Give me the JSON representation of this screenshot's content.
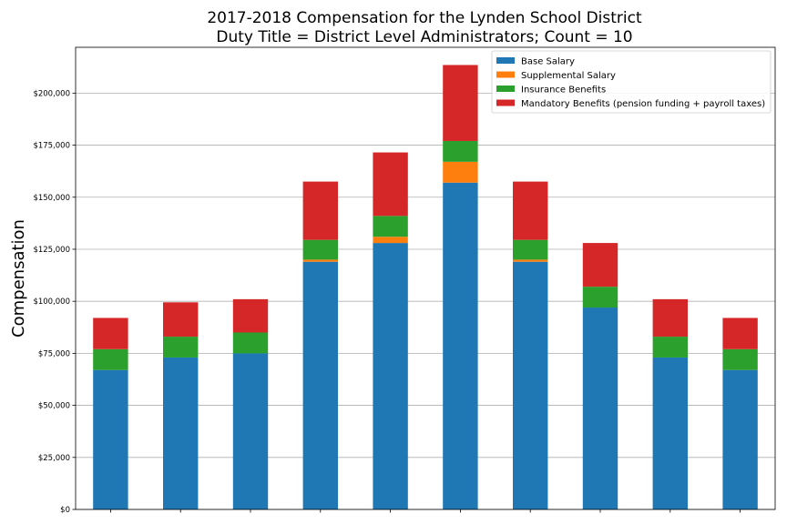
{
  "chart_data": {
    "type": "bar",
    "stacked": true,
    "title_line1": "2017-2018 Compensation for the Lynden School District",
    "title_line2": "Duty Title = District Level Administrators; Count = 10",
    "xlabel": "",
    "ylabel": "Compensation",
    "ylim": [
      0,
      222000
    ],
    "yticks": [
      0,
      25000,
      50000,
      75000,
      100000,
      125000,
      150000,
      175000,
      200000
    ],
    "ytick_labels": [
      "$0",
      "$25,000",
      "$50,000",
      "$75,000",
      "$100,000",
      "$125,000",
      "$150,000",
      "$175,000",
      "$200,000"
    ],
    "grid": "horizontal",
    "legend_position": "top-right",
    "categories": [
      "",
      "",
      "",
      "",
      "",
      "",
      "",
      "",
      "",
      ""
    ],
    "series": [
      {
        "name": "Base Salary",
        "color": "#1f77b4",
        "values": [
          67000,
          73000,
          75000,
          119000,
          128000,
          157000,
          119000,
          97000,
          73000,
          67000
        ]
      },
      {
        "name": "Supplemental Salary",
        "color": "#ff7f0e",
        "values": [
          0,
          0,
          0,
          1000,
          3000,
          10000,
          1000,
          0,
          0,
          0
        ]
      },
      {
        "name": "Insurance Benefits",
        "color": "#2ca02c",
        "values": [
          10000,
          10000,
          10000,
          9500,
          10000,
          10000,
          9500,
          10000,
          10000,
          10000
        ]
      },
      {
        "name": "Mandatory Benefits (pension funding + payroll taxes)",
        "color": "#d62728",
        "values": [
          15000,
          16500,
          16000,
          28000,
          30500,
          36500,
          28000,
          21000,
          18000,
          15000
        ]
      }
    ]
  }
}
